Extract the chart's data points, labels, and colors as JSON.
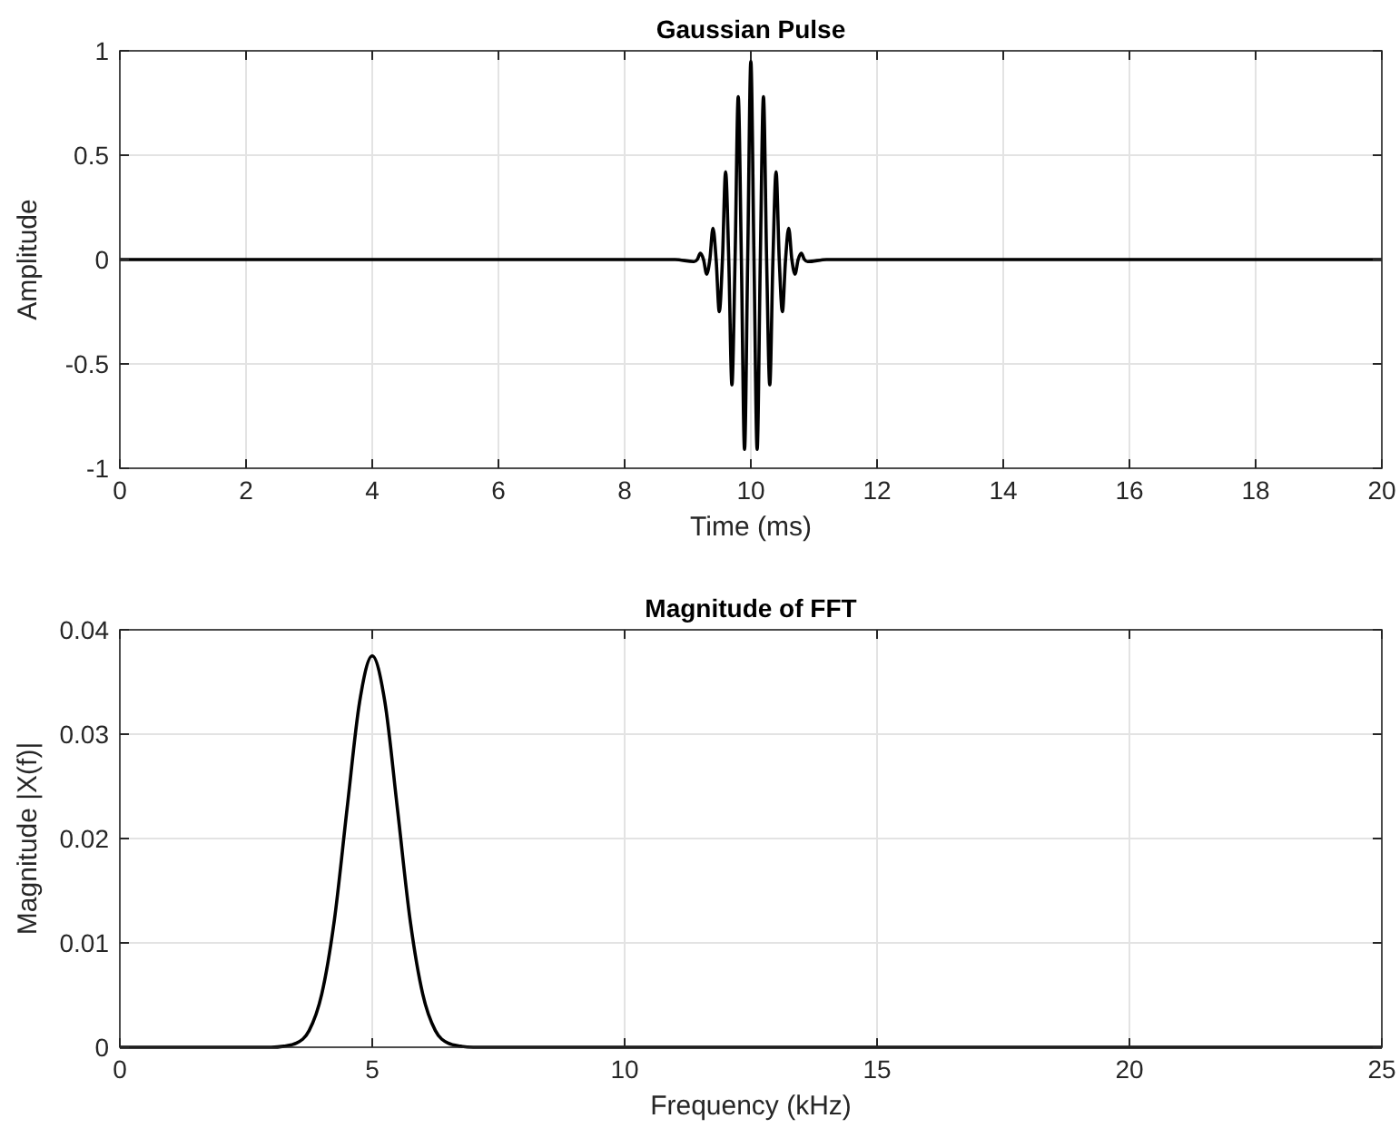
{
  "chart_data": [
    {
      "type": "line",
      "title": "Gaussian Pulse",
      "xlabel": "Time (ms)",
      "ylabel": "Amplitude",
      "xlim": [
        0,
        20
      ],
      "ylim": [
        -1,
        1
      ],
      "xticks": [
        0,
        2,
        4,
        6,
        8,
        10,
        12,
        14,
        16,
        18,
        20
      ],
      "yticks": [
        -1,
        -0.5,
        0,
        0.5,
        1
      ],
      "grid": true,
      "series": [
        {
          "color": "#000000",
          "x": [
            0,
            8.8,
            9.1,
            9.15,
            9.2,
            9.25,
            9.3,
            9.35,
            9.4,
            9.45,
            9.5,
            9.55,
            9.6,
            9.65,
            9.7,
            9.75,
            9.8,
            9.85,
            9.9,
            9.95,
            10,
            10.05,
            10.1,
            10.15,
            10.2,
            10.25,
            10.3,
            10.35,
            10.4,
            10.45,
            10.5,
            10.55,
            10.6,
            10.65,
            10.7,
            10.75,
            10.8,
            10.85,
            10.9,
            11.2,
            20
          ],
          "values": [
            0,
            0,
            -0.01,
            0,
            0.03,
            0,
            -0.07,
            0,
            0.15,
            0,
            -0.25,
            0,
            0.42,
            0,
            -0.6,
            0,
            0.78,
            0,
            -0.91,
            0,
            0.95,
            0,
            -0.91,
            0,
            0.78,
            0,
            -0.6,
            0,
            0.42,
            0,
            -0.25,
            0,
            0.15,
            0,
            -0.07,
            0,
            0.03,
            0,
            -0.01,
            0,
            0
          ]
        }
      ]
    },
    {
      "type": "line",
      "title": "Magnitude of FFT",
      "xlabel": "Frequency (kHz)",
      "ylabel": "Magnitude |X(f)|",
      "xlim": [
        0,
        25
      ],
      "ylim": [
        0,
        0.04
      ],
      "xticks": [
        0,
        5,
        10,
        15,
        20,
        25
      ],
      "yticks": [
        0,
        0.01,
        0.02,
        0.03,
        0.04
      ],
      "grid": true,
      "series": [
        {
          "color": "#000000",
          "x": [
            0,
            3,
            3.25,
            3.5,
            3.75,
            4,
            4.25,
            4.5,
            4.75,
            5,
            5.25,
            5.5,
            5.75,
            6,
            6.25,
            6.5,
            6.75,
            7,
            25
          ],
          "values": [
            0,
            0,
            0.0001,
            0.0004,
            0.0016,
            0.0051,
            0.0122,
            0.0228,
            0.0331,
            0.0375,
            0.0331,
            0.0228,
            0.0122,
            0.0051,
            0.0016,
            0.0004,
            0.0001,
            0,
            0
          ]
        }
      ]
    }
  ]
}
